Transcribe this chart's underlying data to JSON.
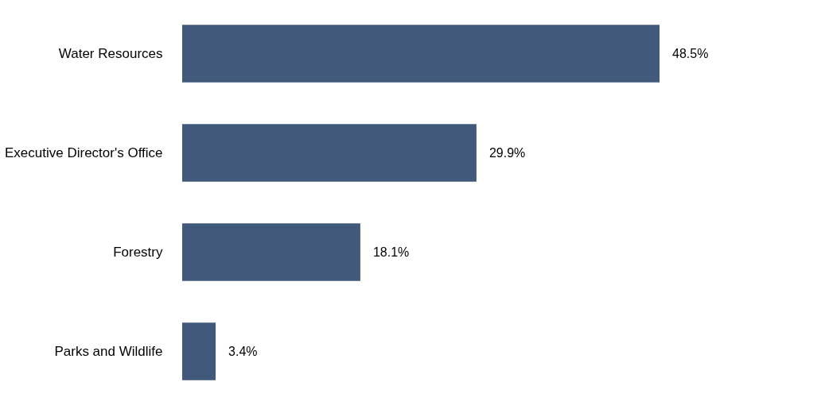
{
  "chart_data": {
    "type": "bar",
    "orientation": "horizontal",
    "categories": [
      "Water Resources",
      "Executive Director's Office",
      "Forestry",
      "Parks and Wildlife"
    ],
    "values": [
      48.5,
      29.9,
      18.1,
      3.4
    ],
    "value_labels": [
      "48.5%",
      "29.9%",
      "18.1%",
      "3.4%"
    ],
    "color": "#41597b"
  }
}
